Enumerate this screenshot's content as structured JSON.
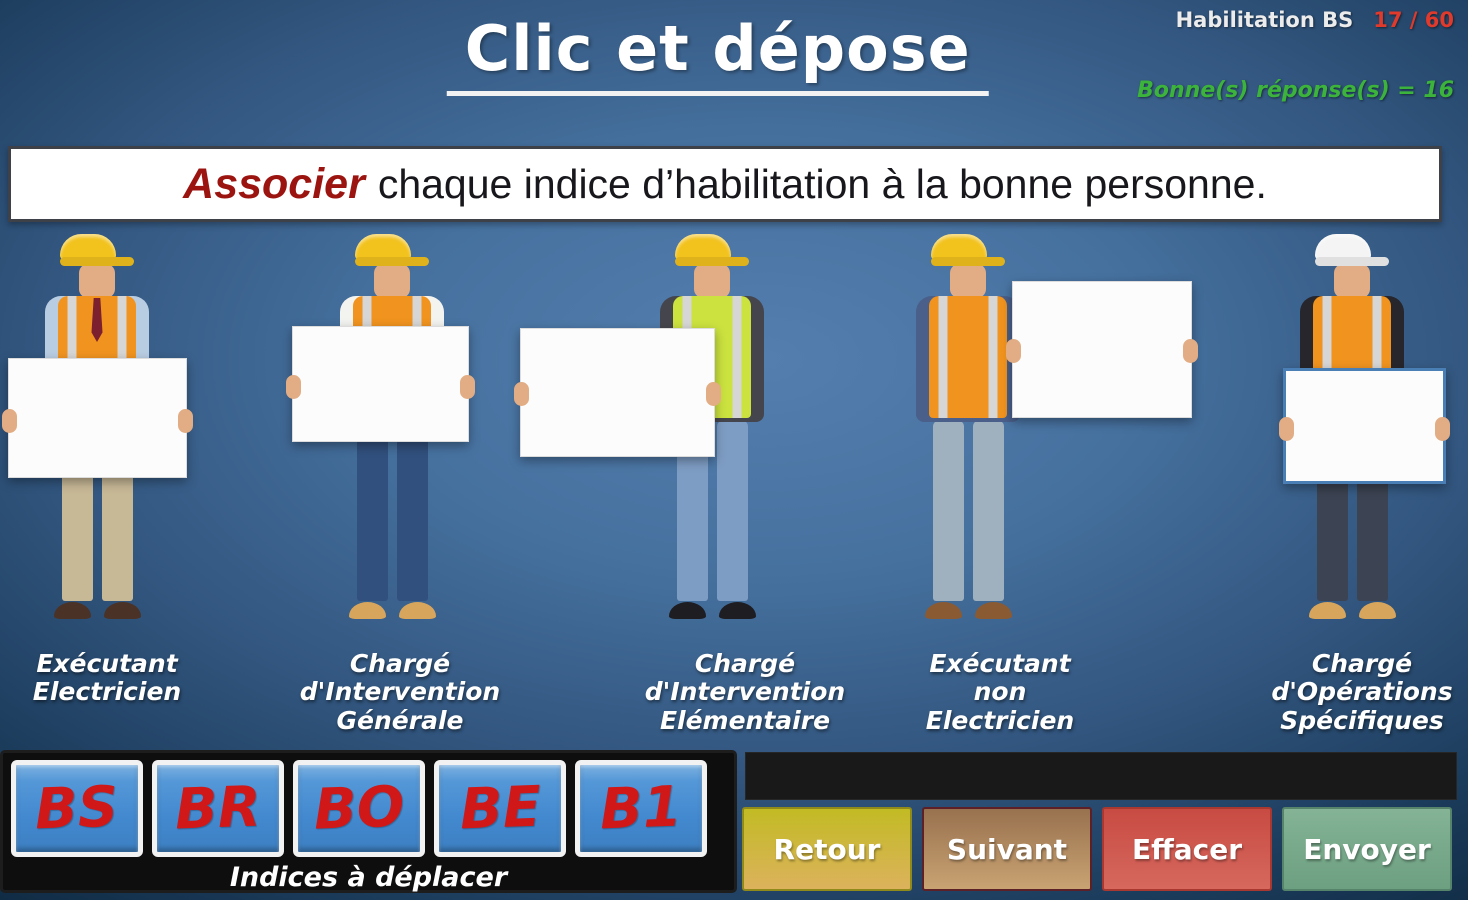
{
  "header": {
    "title": "Clic et dépose",
    "module": "Habilitation BS",
    "progress": "17 / 60",
    "progress_color": "#e03a2c",
    "score": "Bonne(s) réponse(s) = 16",
    "score_color": "#3cb43c"
  },
  "instruction": {
    "emphasis": "Associer",
    "emphasis_color": "#9c1410",
    "rest": "chaque indice d’habilitation à la bonne personne."
  },
  "workers": [
    {
      "id": "executant-electricien",
      "label": "Exécutant\nElectricien",
      "helmet": "#f2c21d",
      "shirt": "#b9cde2",
      "vest": "#f0931f",
      "pants": "#c7b896",
      "boots": "#4a3326",
      "tie": "#7c1f2e",
      "sign_side": "center"
    },
    {
      "id": "charge-intervention-generale",
      "label": "Chargé\nd'Intervention\nGénérale",
      "helmet": "#f2c21d",
      "shirt": "#f3f3f0",
      "vest": "#f0931f",
      "pants": "#31507d",
      "boots": "#d8a55c",
      "sign_side": "center"
    },
    {
      "id": "charge-intervention-elementaire",
      "label": "Chargé\nd'Intervention\nElémentaire",
      "helmet": "#f2c21d",
      "shirt": "#45464d",
      "vest": "#cbe23f",
      "pants": "#7e9dc4",
      "boots": "#1d1d22",
      "sign_side": "left"
    },
    {
      "id": "executant-non-electricien",
      "label": "Exécutant\nnon\nElectricien",
      "helmet": "#f2c21d",
      "shirt": "#4a5f8a",
      "vest": "#f0931f",
      "pants": "#9fb0bf",
      "boots": "#8a5a33",
      "sign_side": "right"
    },
    {
      "id": "charge-operations-specifiques",
      "label": "Chargé\nd'Opérations\nSpécifiques",
      "helmet": "#f4f4f4",
      "shirt": "#26262c",
      "vest": "#f0931f",
      "pants": "#3c4352",
      "boots": "#d8a55c",
      "sign_side": "center",
      "sign_frame": "#4a7fb5"
    }
  ],
  "indices": {
    "items": [
      "BS",
      "BR",
      "BO",
      "BE",
      "B1"
    ],
    "letter_color": "#d01818",
    "caption": "Indices à déplacer"
  },
  "buttons": [
    {
      "id": "retour",
      "label": "Retour",
      "bg_top": "#c2bb24",
      "bg_bottom": "#dcb25c",
      "border": "#8f8a1a"
    },
    {
      "id": "suivant",
      "label": "Suivant",
      "bg_top": "#98714f",
      "bg_bottom": "#c9a372",
      "border": "#5c2026"
    },
    {
      "id": "effacer",
      "label": "Effacer",
      "bg_top": "#c84b42",
      "bg_bottom": "#d6685e",
      "border": "#a83830"
    },
    {
      "id": "envoyer",
      "label": "Envoyer",
      "bg_top": "#84b395",
      "bg_bottom": "#6d9f81",
      "border": "#55846a"
    }
  ]
}
